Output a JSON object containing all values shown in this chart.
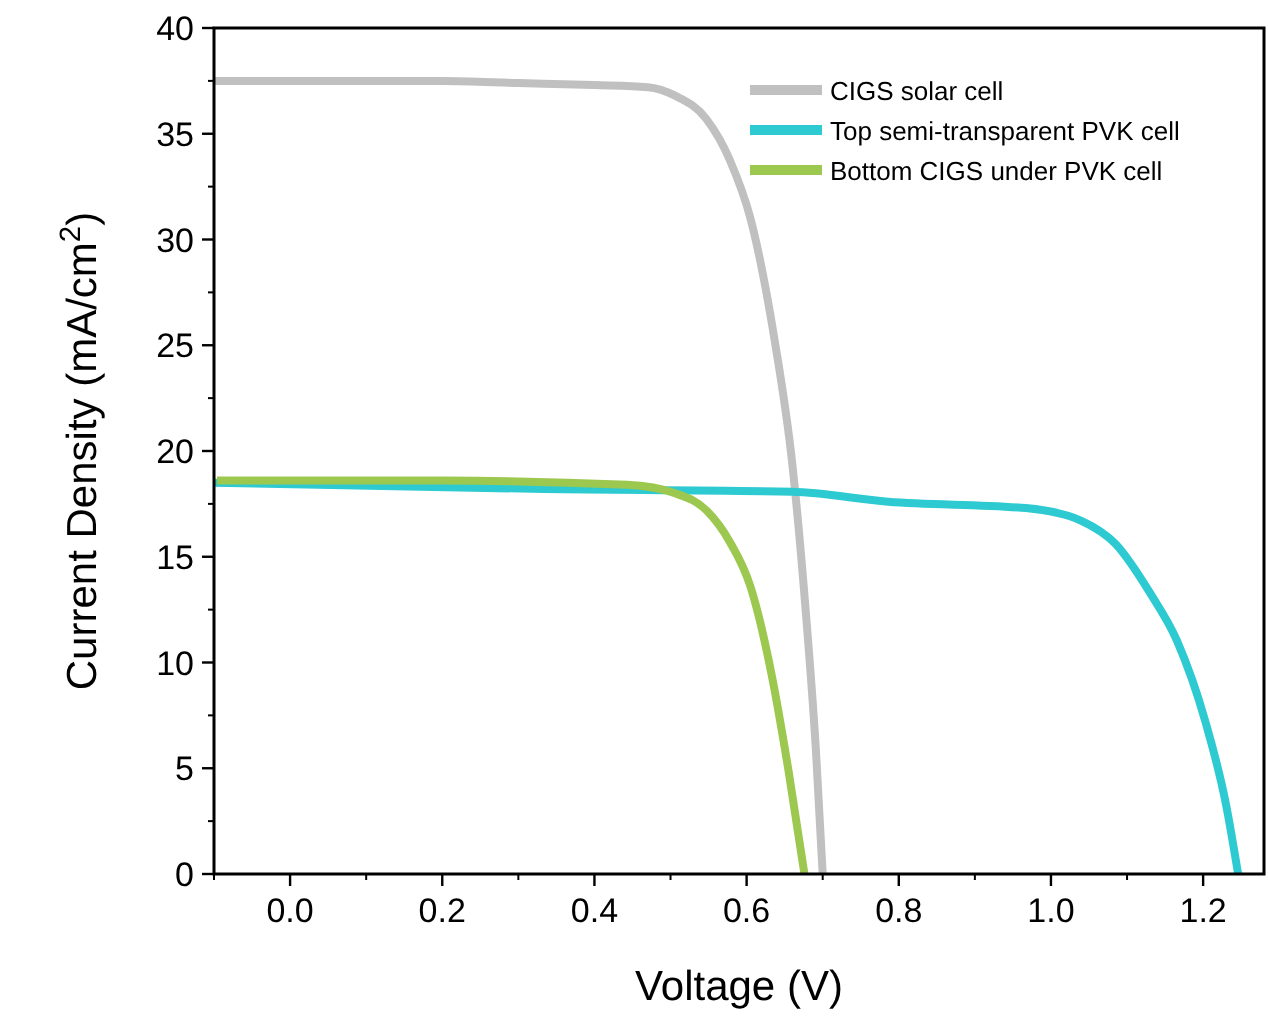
{
  "chart_data": {
    "type": "line",
    "xlabel": "Voltage (V)",
    "ylabel": "Current Density (mA/cm$^{2}$)",
    "xlim": [
      -0.1,
      1.28
    ],
    "ylim": [
      0,
      40
    ],
    "xticks": [
      {
        "value": 0,
        "label": "0.0"
      },
      {
        "value": 0.2,
        "label": "0.2"
      },
      {
        "value": 0.4,
        "label": "0.4"
      },
      {
        "value": 0.6,
        "label": "0.6"
      },
      {
        "value": 0.8,
        "label": "0.8"
      },
      {
        "value": 1,
        "label": "1.0"
      },
      {
        "value": 1.2,
        "label": "1.2"
      }
    ],
    "yticks": [
      0,
      5,
      10,
      15,
      20,
      25,
      30,
      35,
      40
    ],
    "grid": false,
    "legend": "top right",
    "marker": "none",
    "line_style": "solid",
    "series": [
      {
        "name": "CIGS solar cell",
        "color": "#c0c0c0",
        "x": [
          -0.1,
          0.0,
          0.1,
          0.2,
          0.3,
          0.4,
          0.47,
          0.506,
          0.547,
          0.578,
          0.605,
          0.637,
          0.66,
          0.678,
          0.691,
          0.7
        ],
        "values": [
          37.5,
          37.5,
          37.5,
          37.5,
          37.4,
          37.3,
          37.2,
          36.8,
          35.7,
          33.75,
          31.0,
          25.2,
          19.4,
          12.3,
          5.9,
          0
        ]
      },
      {
        "name": "Top semi-transparent PVK cell",
        "color": "#2ecad2",
        "x": [
          -0.1,
          0.334,
          0.66,
          0.786,
          0.967,
          1.04,
          1.085,
          1.13,
          1.166,
          1.203,
          1.23,
          1.246
        ],
        "values": [
          18.5,
          18.2,
          18.07,
          17.6,
          17.3,
          16.7,
          15.6,
          13.3,
          11.0,
          7.2,
          3.3,
          0
        ]
      },
      {
        "name": "Bottom CIGS under PVK cell",
        "color": "#9dc84f",
        "x": [
          -0.096,
          0.2,
          0.443,
          0.506,
          0.547,
          0.578,
          0.605,
          0.633,
          0.655,
          0.676
        ],
        "values": [
          18.6,
          18.6,
          18.4,
          18.0,
          17.2,
          15.7,
          13.6,
          9.4,
          4.9,
          0
        ]
      }
    ]
  }
}
